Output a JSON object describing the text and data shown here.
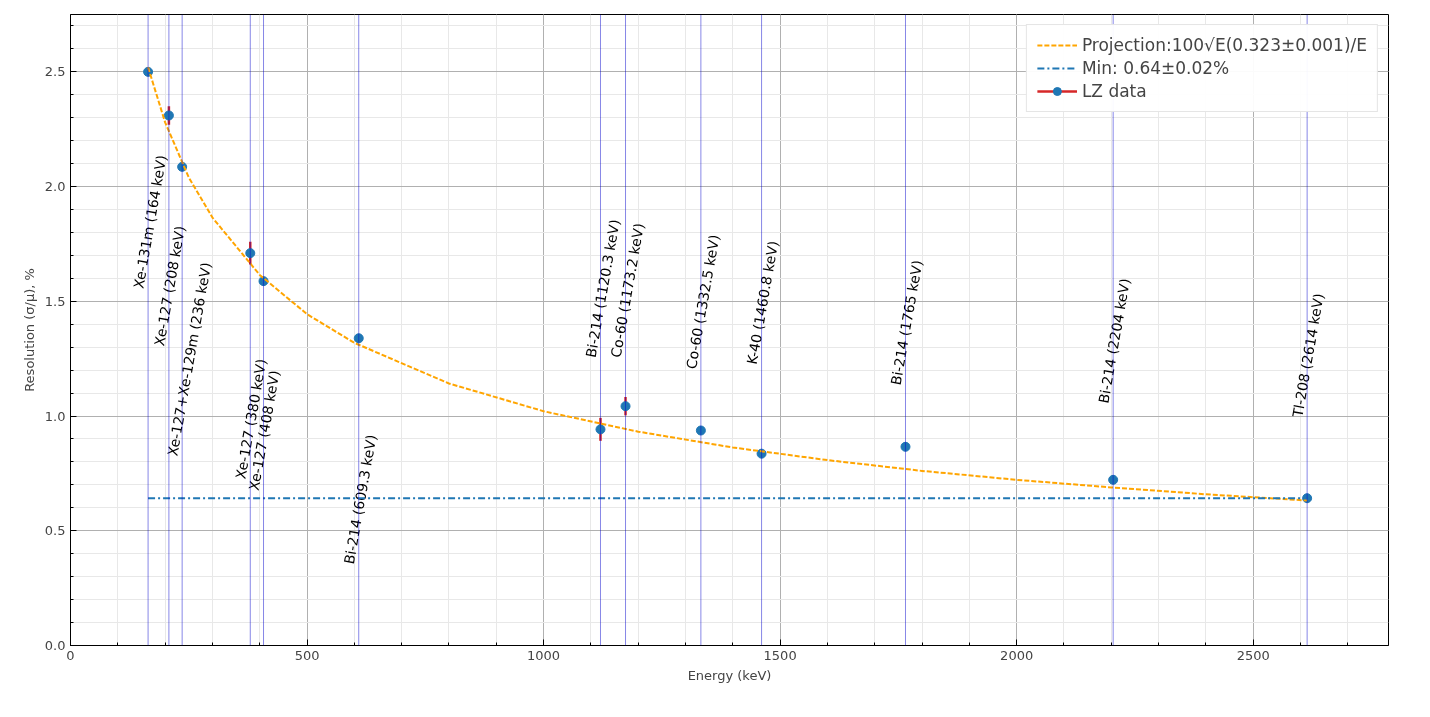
{
  "chart_data": {
    "type": "scatter",
    "xlabel": "Energy (keV)",
    "ylabel": "Resolution (σ/μ), %",
    "xlim": [
      0,
      2786
    ],
    "ylim": [
      0,
      2.75
    ],
    "xticks": [
      0,
      500,
      1000,
      1500,
      2000,
      2500
    ],
    "yticks": [
      {
        "value": 0,
        "label": "0.0"
      },
      {
        "value": 0.5,
        "label": "0.5"
      },
      {
        "value": 1,
        "label": "1.0"
      },
      {
        "value": 1.5,
        "label": "1.5"
      },
      {
        "value": 2,
        "label": "2.0"
      },
      {
        "value": 2.5,
        "label": "2.5"
      }
    ],
    "grid": true,
    "legend": "top right",
    "marker": "circle",
    "series": [
      {
        "name": "Projection:100√E(0.323±0.001)/E",
        "type": "line",
        "line_style": "dashed",
        "color": "#ffa500",
        "marker": "none",
        "x": [
          164,
          200,
          250,
          300,
          400,
          500,
          600,
          800,
          1000,
          1200,
          1400,
          1600,
          1800,
          2000,
          2200,
          2400,
          2614
        ],
        "values": [
          2.52,
          2.28,
          2.04,
          1.865,
          1.615,
          1.444,
          1.319,
          1.142,
          1.021,
          0.932,
          0.863,
          0.808,
          0.761,
          0.722,
          0.689,
          0.659,
          0.632
        ]
      },
      {
        "name": "Min: 0.64±0.02%",
        "type": "line",
        "line_style": "dashdot",
        "color": "#1f77b4",
        "marker": "none",
        "x": [
          164,
          2614
        ],
        "values": [
          0.642,
          0.642
        ]
      },
      {
        "name": "LZ data",
        "color": "#1f77b4",
        "x": [
          164,
          208,
          236,
          380,
          408,
          609.3,
          1120.3,
          1173.2,
          1332.5,
          1460.8,
          1765,
          2204,
          2614
        ],
        "values": [
          2.5,
          2.31,
          2.086,
          1.71,
          1.588,
          1.339,
          0.942,
          1.043,
          0.937,
          0.836,
          0.866,
          0.722,
          0.642
        ],
        "errors": [
          null,
          0.04,
          null,
          0.05,
          null,
          null,
          0.05,
          0.04,
          null,
          null,
          null,
          null,
          null
        ]
      }
    ],
    "ref_lines": [
      {
        "axis": "x",
        "value": 164,
        "label": "Xe-131m (164 keV)",
        "color": "#0000cc"
      },
      {
        "axis": "x",
        "value": 208,
        "label": "Xe-127 (208 keV)",
        "color": "#0000cc"
      },
      {
        "axis": "x",
        "value": 236,
        "label": "Xe-127+Xe-129m (236 keV)",
        "color": "#0000cc"
      },
      {
        "axis": "x",
        "value": 380,
        "label": "Xe-127 (380 keV)",
        "color": "#0000cc"
      },
      {
        "axis": "x",
        "value": 408,
        "label": "Xe-127 (408 keV)",
        "color": "#0000cc"
      },
      {
        "axis": "x",
        "value": 609.3,
        "label": "Bi-214 (609.3 keV)",
        "color": "#0000cc"
      },
      {
        "axis": "x",
        "value": 1120.3,
        "label": "Bi-214 (1120.3 keV)",
        "color": "#0000cc"
      },
      {
        "axis": "x",
        "value": 1173.2,
        "label": "Co-60 (1173.2 keV)",
        "color": "#0000cc"
      },
      {
        "axis": "x",
        "value": 1332.5,
        "label": "Co-60 (1332.5 keV)",
        "color": "#0000cc"
      },
      {
        "axis": "x",
        "value": 1460.8,
        "label": "K-40 (1460.8 keV)",
        "color": "#0000cc"
      },
      {
        "axis": "x",
        "value": 1765,
        "label": "Bi-214 (1765 keV)",
        "color": "#0000cc"
      },
      {
        "axis": "x",
        "value": 2204,
        "label": "Bi-214 (2204 keV)",
        "color": "#0000cc"
      },
      {
        "axis": "x",
        "value": 2614,
        "label": "Tl-208 (2614 keV)",
        "color": "#0000cc"
      }
    ]
  }
}
